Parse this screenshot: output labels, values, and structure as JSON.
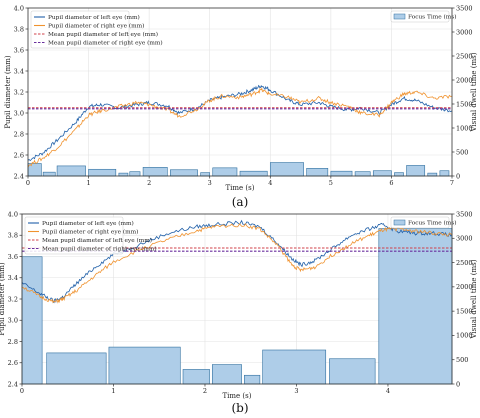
{
  "chart_data": [
    {
      "type": "line",
      "caption": "(a)",
      "xlabel": "Time (s)",
      "ylabel": "Pupil diameter (mm)",
      "y2label": "Visual dwell time (ms)",
      "xlim": [
        0,
        7
      ],
      "ylim": [
        2.4,
        4.0
      ],
      "y2lim": [
        0,
        3500
      ],
      "xticks": [
        "0",
        "1",
        "2",
        "3",
        "4",
        "5",
        "6",
        "7"
      ],
      "yticks": [
        "2.4",
        "2.6",
        "2.8",
        "3.0",
        "3.2",
        "3.4",
        "3.6",
        "3.8",
        "4.0"
      ],
      "y2ticks": [
        "0",
        "500",
        "1000",
        "1500",
        "2000",
        "2500",
        "3000",
        "3500"
      ],
      "grid": true,
      "legend_left": "top-left",
      "legend_right": "top-right",
      "series": [
        {
          "name": "Pupil diameter of left eye (mm)",
          "color": "#1f5fa8",
          "kind": "line",
          "x": [
            0,
            0.25,
            0.5,
            0.8,
            1.0,
            1.2,
            1.5,
            1.8,
            2.0,
            2.3,
            2.5,
            2.8,
            3.0,
            3.2,
            3.5,
            3.7,
            3.85,
            4.0,
            4.3,
            4.5,
            4.8,
            5.0,
            5.3,
            5.5,
            5.8,
            6.0,
            6.2,
            6.4,
            6.7,
            7.0
          ],
          "y": [
            2.55,
            2.62,
            2.75,
            2.92,
            3.06,
            3.08,
            3.05,
            3.08,
            3.1,
            3.07,
            3.0,
            3.05,
            3.12,
            3.15,
            3.18,
            3.22,
            3.26,
            3.22,
            3.12,
            3.08,
            3.1,
            3.06,
            3.03,
            3.05,
            3.0,
            3.08,
            3.14,
            3.12,
            3.05,
            3.02
          ]
        },
        {
          "name": "Pupil diameter of right eye (mm)",
          "color": "#f0922e",
          "kind": "line",
          "x": [
            0,
            0.25,
            0.5,
            0.8,
            1.0,
            1.2,
            1.5,
            1.8,
            2.0,
            2.3,
            2.5,
            2.8,
            3.0,
            3.2,
            3.5,
            3.7,
            3.85,
            4.0,
            4.3,
            4.5,
            4.8,
            5.0,
            5.3,
            5.5,
            5.8,
            6.0,
            6.2,
            6.4,
            6.7,
            7.0
          ],
          "y": [
            2.5,
            2.57,
            2.68,
            2.85,
            2.98,
            3.02,
            3.06,
            3.1,
            3.08,
            3.03,
            2.97,
            3.04,
            3.12,
            3.16,
            3.15,
            3.18,
            3.22,
            3.18,
            3.15,
            3.1,
            3.14,
            3.1,
            3.06,
            3.0,
            2.98,
            3.1,
            3.18,
            3.2,
            3.14,
            3.16
          ]
        },
        {
          "name": "Mean pupil diameter of left eye (mm)",
          "color": "#d0404a",
          "kind": "hline",
          "value": 3.05
        },
        {
          "name": "Mean pupil diameter of right eye (mm)",
          "color": "#6a2f9e",
          "kind": "hline",
          "value": 3.04
        }
      ],
      "bar_series": {
        "name": "Focus Time (ms)",
        "color": "#aecde8",
        "edge": "#2f6f9f",
        "bars": [
          {
            "x0": 0.0,
            "x1": 0.22,
            "v": 260
          },
          {
            "x0": 0.25,
            "x1": 0.45,
            "v": 80
          },
          {
            "x0": 0.48,
            "x1": 0.95,
            "v": 210
          },
          {
            "x0": 1.0,
            "x1": 1.45,
            "v": 140
          },
          {
            "x0": 1.5,
            "x1": 1.65,
            "v": 60
          },
          {
            "x0": 1.68,
            "x1": 1.85,
            "v": 90
          },
          {
            "x0": 1.9,
            "x1": 2.3,
            "v": 180
          },
          {
            "x0": 2.35,
            "x1": 2.8,
            "v": 130
          },
          {
            "x0": 2.85,
            "x1": 3.0,
            "v": 70
          },
          {
            "x0": 3.05,
            "x1": 3.45,
            "v": 170
          },
          {
            "x0": 3.5,
            "x1": 3.95,
            "v": 100
          },
          {
            "x0": 4.0,
            "x1": 4.55,
            "v": 280
          },
          {
            "x0": 4.6,
            "x1": 4.95,
            "v": 160
          },
          {
            "x0": 5.0,
            "x1": 5.35,
            "v": 100
          },
          {
            "x0": 5.4,
            "x1": 5.65,
            "v": 90
          },
          {
            "x0": 5.7,
            "x1": 6.0,
            "v": 110
          },
          {
            "x0": 6.05,
            "x1": 6.2,
            "v": 70
          },
          {
            "x0": 6.25,
            "x1": 6.55,
            "v": 220
          },
          {
            "x0": 6.6,
            "x1": 6.75,
            "v": 60
          },
          {
            "x0": 6.8,
            "x1": 6.95,
            "v": 110
          }
        ]
      }
    },
    {
      "type": "line",
      "caption": "(b)",
      "xlabel": "Time (s)",
      "ylabel": "Pupil diameter (mm)",
      "y2label": "Visual dwell time (ms)",
      "xlim": [
        0,
        4.7
      ],
      "ylim": [
        2.4,
        4.0
      ],
      "y2lim": [
        0,
        3500
      ],
      "xticks": [
        "0",
        "1",
        "2",
        "3",
        "4"
      ],
      "yticks": [
        "2.4",
        "2.6",
        "2.8",
        "3.0",
        "3.2",
        "3.4",
        "3.6",
        "3.8",
        "4.0"
      ],
      "y2ticks": [
        "0",
        "500",
        "1000",
        "1500",
        "2000",
        "2500",
        "3000",
        "3500"
      ],
      "grid": true,
      "legend_left": "top-left",
      "legend_right": "top-right",
      "series": [
        {
          "name": "Pupil diameter of left eye (mm)",
          "color": "#1f5fa8",
          "kind": "line",
          "x": [
            0,
            0.2,
            0.35,
            0.45,
            0.6,
            0.8,
            1.0,
            1.3,
            1.6,
            1.9,
            2.1,
            2.4,
            2.6,
            2.8,
            2.95,
            3.05,
            3.2,
            3.4,
            3.6,
            3.8,
            3.95,
            4.1,
            4.3,
            4.5,
            4.7
          ],
          "y": [
            3.35,
            3.25,
            3.18,
            3.22,
            3.35,
            3.5,
            3.62,
            3.72,
            3.82,
            3.88,
            3.9,
            3.92,
            3.88,
            3.72,
            3.58,
            3.52,
            3.56,
            3.68,
            3.8,
            3.86,
            3.9,
            3.84,
            3.82,
            3.82,
            3.8
          ]
        },
        {
          "name": "Pupil diameter of right eye (mm)",
          "color": "#f0922e",
          "kind": "line",
          "x": [
            0,
            0.2,
            0.35,
            0.45,
            0.6,
            0.8,
            1.0,
            1.3,
            1.6,
            1.9,
            2.1,
            2.4,
            2.6,
            2.8,
            2.95,
            3.05,
            3.2,
            3.4,
            3.6,
            3.8,
            3.95,
            4.1,
            4.3,
            4.5,
            4.7
          ],
          "y": [
            3.32,
            3.22,
            3.17,
            3.2,
            3.28,
            3.42,
            3.55,
            3.67,
            3.76,
            3.84,
            3.88,
            3.9,
            3.86,
            3.7,
            3.52,
            3.47,
            3.5,
            3.62,
            3.72,
            3.8,
            3.85,
            3.86,
            3.84,
            3.82,
            3.8
          ]
        },
        {
          "name": "Mean pupil diameter of left eye (mm)",
          "color": "#d0404a",
          "kind": "hline",
          "value": 3.68
        },
        {
          "name": "Mean pupil diameter of right eye (mm)",
          "color": "#6a2f9e",
          "kind": "hline",
          "value": 3.65
        }
      ],
      "bar_series": {
        "name": "Focus Time (ms)",
        "color": "#aecde8",
        "edge": "#2f6f9f",
        "bars": [
          {
            "x0": 0.0,
            "x1": 0.22,
            "v": 2620
          },
          {
            "x0": 0.27,
            "x1": 0.92,
            "v": 640
          },
          {
            "x0": 0.95,
            "x1": 1.73,
            "v": 760
          },
          {
            "x0": 1.76,
            "x1": 2.05,
            "v": 300
          },
          {
            "x0": 2.08,
            "x1": 2.4,
            "v": 400
          },
          {
            "x0": 2.43,
            "x1": 2.6,
            "v": 180
          },
          {
            "x0": 2.63,
            "x1": 3.32,
            "v": 700
          },
          {
            "x0": 3.36,
            "x1": 3.86,
            "v": 520
          },
          {
            "x0": 3.9,
            "x1": 4.7,
            "v": 3200
          }
        ]
      }
    }
  ]
}
